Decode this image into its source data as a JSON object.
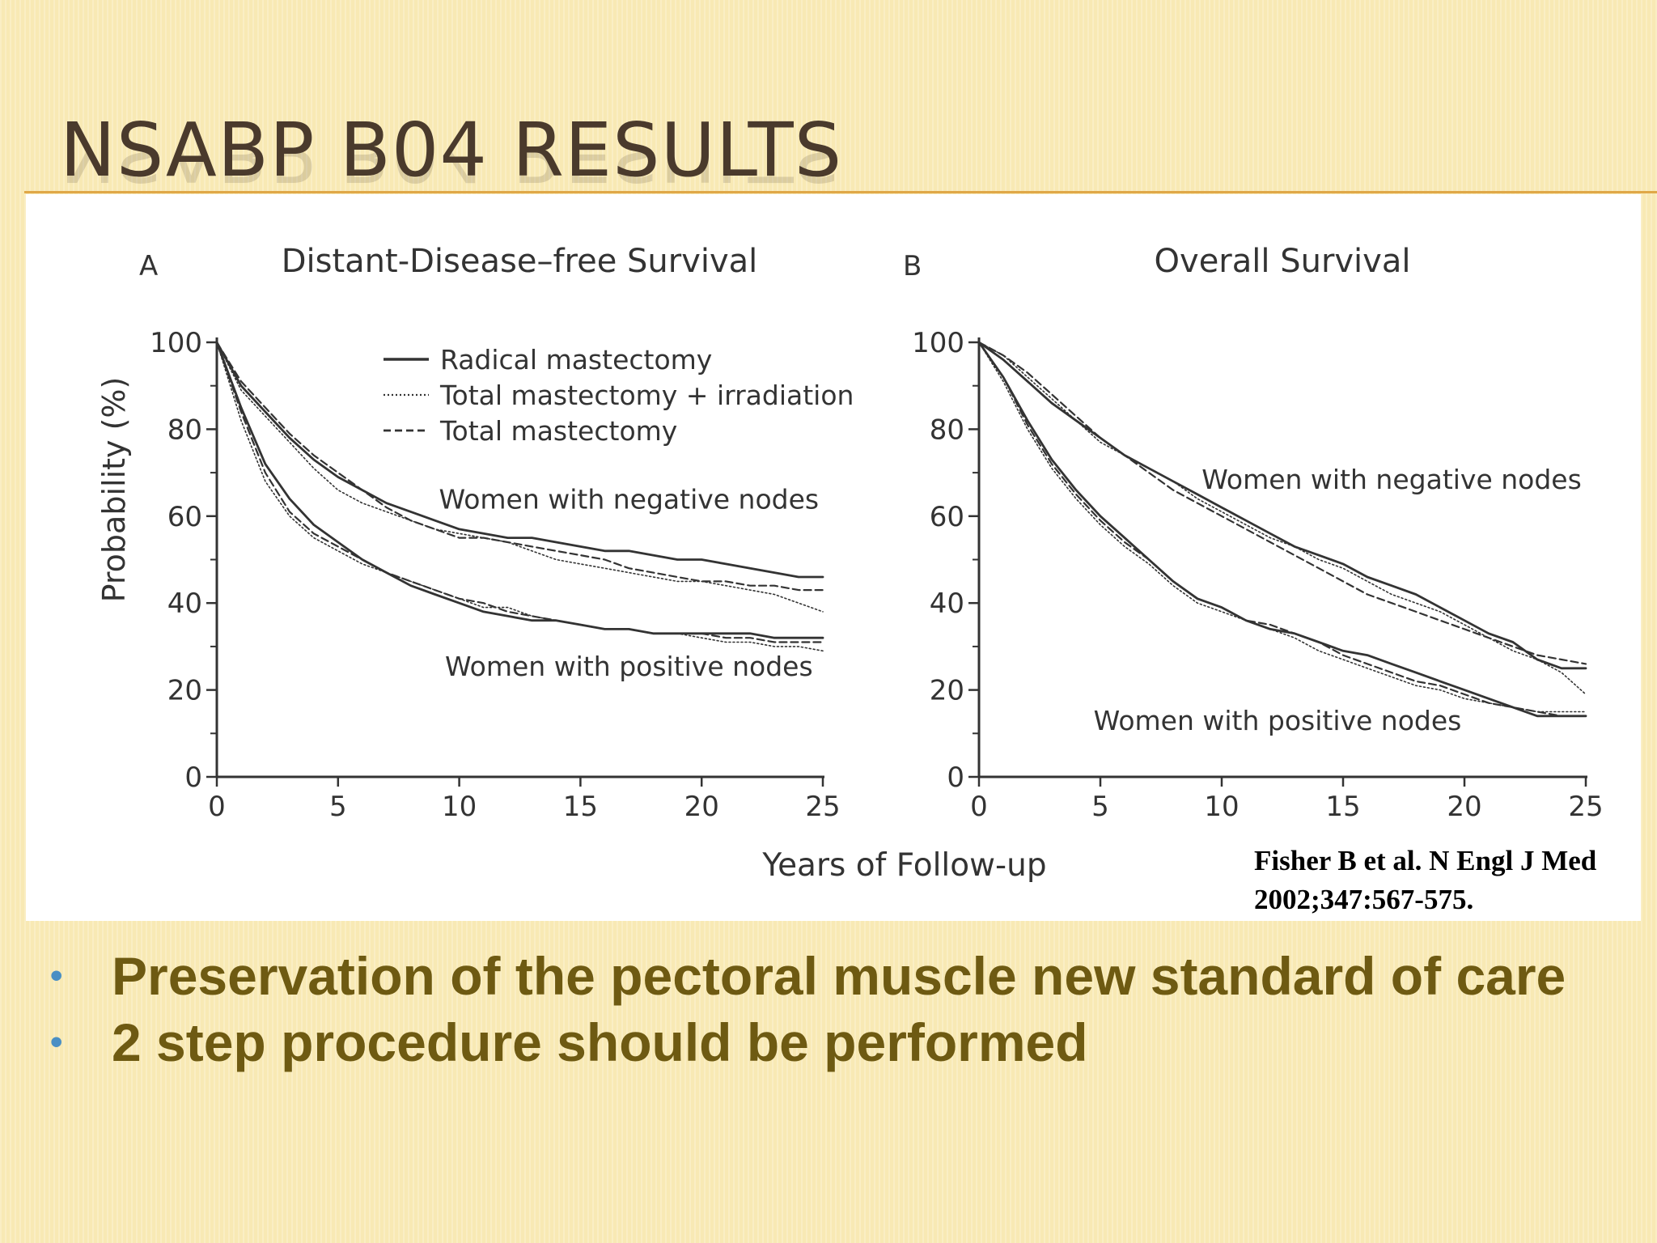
{
  "slide": {
    "title": "NSABP B04 RESULTS",
    "citation_lines": [
      "Fisher B et al. N Engl J Med",
      "2002;347:567-575."
    ],
    "bullets": [
      "Preservation of the pectoral muscle new standard of care",
      "2 step procedure should be performed"
    ],
    "colors": {
      "title": "#4a3a2c",
      "bullet_text": "#6e5a12",
      "bullet_dot": "#4a8fc4",
      "rule": "#e0a848"
    }
  },
  "figure": {
    "xlabel": "Years of Follow-up",
    "ylabel": "Probability (%)"
  },
  "chart_data": [
    {
      "type": "line",
      "panel_letter": "A",
      "title": "Distant-Disease–free Survival",
      "ylabel": "Probability (%)",
      "xlim": [
        0,
        25
      ],
      "ylim": [
        0,
        100
      ],
      "x_ticks": [
        0,
        5,
        10,
        15,
        20,
        25
      ],
      "y_ticks": [
        0,
        20,
        40,
        60,
        80,
        100
      ],
      "legend": {
        "placement": "top-right",
        "entries": [
          {
            "label": "Radical mastectomy",
            "style": "solid"
          },
          {
            "label": "Total mastectomy + irradiation",
            "style": "dotted"
          },
          {
            "label": "Total mastectomy",
            "style": "dashed"
          }
        ]
      },
      "annotations": [
        {
          "text": "Women with negative nodes",
          "x": 17,
          "y": 64
        },
        {
          "text": "Women with positive nodes",
          "x": 17,
          "y": 25.5
        }
      ],
      "groups": [
        {
          "name": "Women with negative nodes",
          "series": [
            {
              "name": "Radical mastectomy",
              "style": "solid",
              "x": [
                0,
                1,
                2,
                3,
                4,
                5,
                6,
                7,
                8,
                9,
                10,
                11,
                12,
                13,
                14,
                15,
                16,
                17,
                18,
                19,
                20,
                21,
                22,
                23,
                24,
                25
              ],
              "y": [
                100,
                90,
                84,
                78,
                73,
                69,
                66,
                63,
                61,
                59,
                57,
                56,
                55,
                55,
                54,
                53,
                52,
                52,
                51,
                50,
                50,
                49,
                48,
                47,
                46,
                46
              ]
            },
            {
              "name": "Total mastectomy + irradiation",
              "style": "dotted",
              "x": [
                0,
                1,
                2,
                3,
                4,
                5,
                6,
                7,
                8,
                9,
                10,
                11,
                12,
                13,
                14,
                15,
                16,
                17,
                18,
                19,
                20,
                21,
                22,
                23,
                24,
                25
              ],
              "y": [
                100,
                89,
                83,
                77,
                71,
                66,
                63,
                61,
                59,
                57,
                56,
                55,
                54,
                52,
                50,
                49,
                48,
                47,
                46,
                45,
                45,
                44,
                43,
                42,
                40,
                38
              ]
            },
            {
              "name": "Total mastectomy",
              "style": "dashed",
              "x": [
                0,
                1,
                2,
                3,
                4,
                5,
                6,
                7,
                8,
                9,
                10,
                11,
                12,
                13,
                14,
                15,
                16,
                17,
                18,
                19,
                20,
                21,
                22,
                23,
                24,
                25
              ],
              "y": [
                100,
                91,
                85,
                79,
                74,
                70,
                66,
                62,
                59,
                57,
                55,
                55,
                54,
                53,
                52,
                51,
                50,
                48,
                47,
                46,
                45,
                45,
                44,
                44,
                43,
                43
              ]
            }
          ]
        },
        {
          "name": "Women with positive nodes",
          "series": [
            {
              "name": "Radical mastectomy",
              "style": "solid",
              "x": [
                0,
                1,
                2,
                3,
                4,
                5,
                6,
                7,
                8,
                9,
                10,
                11,
                12,
                13,
                14,
                15,
                16,
                17,
                18,
                19,
                20,
                21,
                22,
                23,
                24,
                25
              ],
              "y": [
                100,
                85,
                72,
                64,
                58,
                54,
                50,
                47,
                44,
                42,
                40,
                38,
                37,
                36,
                36,
                35,
                34,
                34,
                33,
                33,
                33,
                33,
                33,
                32,
                32,
                32
              ]
            },
            {
              "name": "Total mastectomy + irradiation",
              "style": "dotted",
              "x": [
                0,
                1,
                2,
                3,
                4,
                5,
                6,
                7,
                8,
                9,
                10,
                11,
                12,
                13,
                14,
                15,
                16,
                17,
                18,
                19,
                20,
                21,
                22,
                23,
                24,
                25
              ],
              "y": [
                100,
                82,
                68,
                60,
                55,
                52,
                49,
                47,
                45,
                43,
                41,
                39,
                39,
                37,
                36,
                35,
                34,
                34,
                33,
                33,
                32,
                31,
                31,
                30,
                30,
                29
              ]
            },
            {
              "name": "Total mastectomy",
              "style": "dashed",
              "x": [
                0,
                1,
                2,
                3,
                4,
                5,
                6,
                7,
                8,
                9,
                10,
                11,
                12,
                13,
                14,
                15,
                16,
                17,
                18,
                19,
                20,
                21,
                22,
                23,
                24,
                25
              ],
              "y": [
                100,
                84,
                70,
                61,
                56,
                53,
                50,
                47,
                45,
                43,
                41,
                40,
                38,
                37,
                36,
                35,
                34,
                34,
                33,
                33,
                33,
                32,
                32,
                31,
                31,
                31
              ]
            }
          ]
        }
      ]
    },
    {
      "type": "line",
      "panel_letter": "B",
      "title": "Overall Survival",
      "xlim": [
        0,
        25
      ],
      "ylim": [
        0,
        100
      ],
      "x_ticks": [
        0,
        5,
        10,
        15,
        20,
        25
      ],
      "y_ticks": [
        0,
        20,
        40,
        60,
        80,
        100
      ],
      "annotations": [
        {
          "text": "Women with negative nodes",
          "x": 17,
          "y": 68.5
        },
        {
          "text": "Women with positive nodes",
          "x": 12.3,
          "y": 13
        }
      ],
      "groups": [
        {
          "name": "Women with negative nodes",
          "series": [
            {
              "name": "Radical mastectomy",
              "style": "solid",
              "x": [
                0,
                1,
                2,
                3,
                4,
                5,
                6,
                7,
                8,
                9,
                10,
                11,
                12,
                13,
                14,
                15,
                16,
                17,
                18,
                19,
                20,
                21,
                22,
                23,
                24,
                25
              ],
              "y": [
                100,
                96,
                91,
                86,
                82,
                78,
                74,
                71,
                68,
                65,
                62,
                59,
                56,
                53,
                51,
                49,
                46,
                44,
                42,
                39,
                36,
                33,
                31,
                27,
                25,
                25
              ]
            },
            {
              "name": "Total mastectomy + irradiation",
              "style": "dotted",
              "x": [
                0,
                1,
                2,
                3,
                4,
                5,
                6,
                7,
                8,
                9,
                10,
                11,
                12,
                13,
                14,
                15,
                16,
                17,
                18,
                19,
                20,
                21,
                22,
                23,
                24,
                25
              ],
              "y": [
                100,
                97,
                92,
                87,
                82,
                77,
                74,
                71,
                68,
                64,
                61,
                58,
                55,
                53,
                50,
                48,
                45,
                42,
                40,
                38,
                35,
                32,
                29,
                27,
                24,
                19
              ]
            },
            {
              "name": "Total mastectomy",
              "style": "dashed",
              "x": [
                0,
                1,
                2,
                3,
                4,
                5,
                6,
                7,
                8,
                9,
                10,
                11,
                12,
                13,
                14,
                15,
                16,
                17,
                18,
                19,
                20,
                21,
                22,
                23,
                24,
                25
              ],
              "y": [
                100,
                97,
                93,
                88,
                83,
                78,
                74,
                70,
                66,
                63,
                60,
                57,
                54,
                51,
                48,
                45,
                42,
                40,
                38,
                36,
                34,
                32,
                30,
                28,
                27,
                26
              ]
            }
          ]
        },
        {
          "name": "Women with positive nodes",
          "series": [
            {
              "name": "Radical mastectomy",
              "style": "solid",
              "x": [
                0,
                1,
                2,
                3,
                4,
                5,
                6,
                7,
                8,
                9,
                10,
                11,
                12,
                13,
                14,
                15,
                16,
                17,
                18,
                19,
                20,
                21,
                22,
                23,
                24,
                25
              ],
              "y": [
                100,
                92,
                82,
                73,
                66,
                60,
                55,
                50,
                45,
                41,
                39,
                36,
                34,
                33,
                31,
                29,
                28,
                26,
                24,
                22,
                20,
                18,
                16,
                14,
                14,
                14
              ]
            },
            {
              "name": "Total mastectomy + irradiation",
              "style": "dotted",
              "x": [
                0,
                1,
                2,
                3,
                4,
                5,
                6,
                7,
                8,
                9,
                10,
                11,
                12,
                13,
                14,
                15,
                16,
                17,
                18,
                19,
                20,
                21,
                22,
                23,
                24,
                25
              ],
              "y": [
                100,
                91,
                80,
                71,
                64,
                58,
                53,
                49,
                44,
                40,
                38,
                36,
                34,
                32,
                29,
                27,
                25,
                23,
                21,
                20,
                18,
                17,
                16,
                15,
                15,
                15
              ]
            },
            {
              "name": "Total mastectomy",
              "style": "dashed",
              "x": [
                0,
                1,
                2,
                3,
                4,
                5,
                6,
                7,
                8,
                9,
                10,
                11,
                12,
                13,
                14,
                15,
                16,
                17,
                18,
                19,
                20,
                21,
                22,
                23,
                24,
                25
              ],
              "y": [
                100,
                92,
                81,
                72,
                65,
                59,
                54,
                50,
                45,
                41,
                39,
                36,
                35,
                33,
                31,
                28,
                26,
                24,
                22,
                21,
                19,
                17,
                16,
                15,
                14,
                14
              ]
            }
          ]
        }
      ]
    }
  ]
}
